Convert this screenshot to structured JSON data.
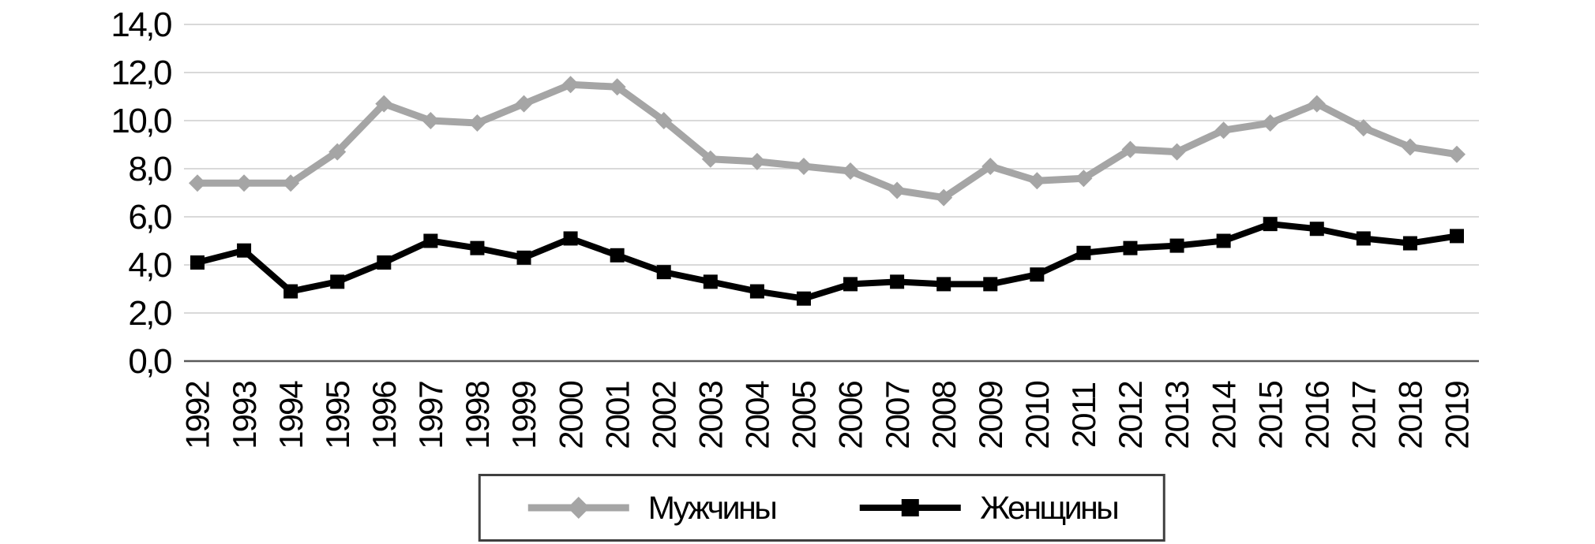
{
  "chart_data": {
    "type": "line",
    "title": "",
    "xlabel": "",
    "ylabel": "",
    "grid": "horizontal",
    "legend_position": "bottom-center",
    "ylim": [
      0,
      14
    ],
    "ytick_step": 2,
    "yticks": [
      {
        "value": 0,
        "label": "0,0"
      },
      {
        "value": 2,
        "label": "2,0"
      },
      {
        "value": 4,
        "label": "4,0"
      },
      {
        "value": 6,
        "label": "6,0"
      },
      {
        "value": 8,
        "label": "8,0"
      },
      {
        "value": 10,
        "label": "10,0"
      },
      {
        "value": 12,
        "label": "12,0"
      },
      {
        "value": 14,
        "label": "14,0"
      }
    ],
    "categories": [
      "1992",
      "1993",
      "1994",
      "1995",
      "1996",
      "1997",
      "1998",
      "1999",
      "2000",
      "2001",
      "2002",
      "2003",
      "2004",
      "2005",
      "2006",
      "2007",
      "2008",
      "2009",
      "2010",
      "2011",
      "2012",
      "2013",
      "2014",
      "2015",
      "2016",
      "2017",
      "2018",
      "2019"
    ],
    "series": [
      {
        "name": "Мужчины",
        "marker": "diamond",
        "color": "#A5A5A5",
        "values": [
          7.4,
          7.4,
          7.4,
          8.7,
          10.7,
          10.0,
          9.9,
          10.7,
          11.5,
          11.4,
          10.0,
          8.4,
          8.3,
          8.1,
          7.9,
          7.1,
          6.8,
          8.1,
          7.5,
          7.6,
          8.8,
          8.7,
          9.6,
          9.9,
          10.7,
          9.7,
          8.9,
          8.6
        ]
      },
      {
        "name": "Женщины",
        "marker": "square",
        "color": "#000000",
        "values": [
          4.1,
          4.6,
          2.9,
          3.3,
          4.1,
          5.0,
          4.7,
          4.3,
          5.1,
          4.4,
          3.7,
          3.3,
          2.9,
          2.6,
          3.2,
          3.3,
          3.2,
          3.2,
          3.6,
          4.5,
          4.7,
          4.8,
          5.0,
          5.7,
          5.5,
          5.1,
          4.9,
          5.2
        ]
      }
    ]
  },
  "colors": {
    "grid": "#D9D9D9",
    "axis": "#595959",
    "text": "#000000",
    "legend_border": "#404040",
    "series_men": "#A5A5A5",
    "series_women": "#000000"
  }
}
